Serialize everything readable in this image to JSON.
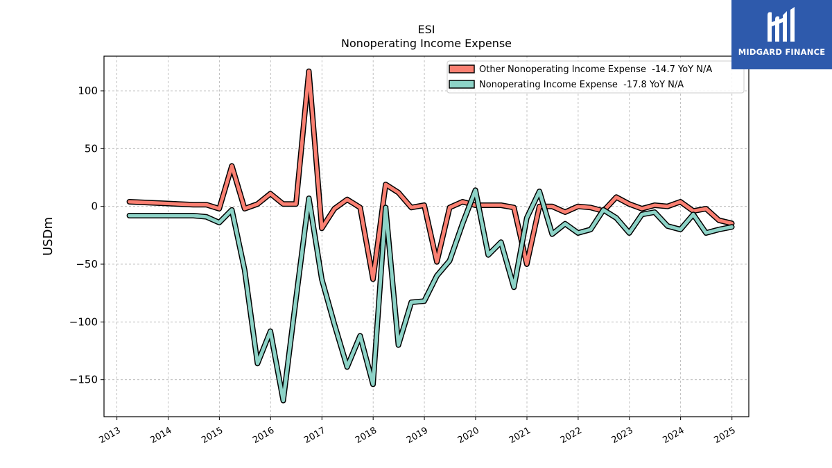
{
  "brand": {
    "name": "MIDGARD FINANCE",
    "logo_icon": "midgard-m-logo-icon",
    "background_color": "#2e5aac"
  },
  "chart_data": {
    "type": "line",
    "title": "ESI",
    "subtitle": "Nonoperating Income Expense",
    "xlabel": "",
    "ylabel": "USDm",
    "x_ticks": [
      "2013",
      "2014",
      "2015",
      "2016",
      "2017",
      "2018",
      "2019",
      "2020",
      "2021",
      "2022",
      "2023",
      "2024",
      "2025"
    ],
    "y_ticks": [
      100,
      50,
      0,
      -50,
      -100,
      -150
    ],
    "y_tick_labels": [
      "100",
      "50",
      "0",
      "−50",
      "−100",
      "−150"
    ],
    "xlim": [
      "2012-10-01",
      "2025-05-01"
    ],
    "ylim": [
      -182,
      130
    ],
    "grid": true,
    "legend_position": "top-right",
    "series": [
      {
        "name": "Other Nonoperating Income Expense  -14.7 YoY N/A",
        "color": "#fa8072",
        "x": [
          "2013-03-31",
          "2014-06-30",
          "2014-09-30",
          "2014-12-31",
          "2015-03-31",
          "2015-06-30",
          "2015-09-30",
          "2015-12-31",
          "2016-03-31",
          "2016-06-30",
          "2016-09-30",
          "2016-12-31",
          "2017-03-31",
          "2017-06-30",
          "2017-09-30",
          "2017-12-31",
          "2018-03-31",
          "2018-06-30",
          "2018-09-30",
          "2018-12-31",
          "2019-03-31",
          "2019-06-30",
          "2019-09-30",
          "2019-12-31",
          "2020-03-31",
          "2020-06-30",
          "2020-09-30",
          "2020-12-31",
          "2021-03-31",
          "2021-06-30",
          "2021-09-30",
          "2021-12-31",
          "2022-03-31",
          "2022-06-30",
          "2022-09-30",
          "2022-12-31",
          "2023-03-31",
          "2023-06-30",
          "2023-09-30",
          "2023-12-31",
          "2024-03-31",
          "2024-06-30",
          "2024-09-30",
          "2024-12-31"
        ],
        "values": [
          4,
          1.5,
          1.5,
          -2,
          35,
          -2,
          2,
          11,
          2,
          2,
          117,
          -19,
          -2,
          6,
          -1,
          -63,
          19,
          12,
          -1,
          1,
          -48,
          -1,
          4,
          1,
          1,
          1,
          -1,
          -50,
          0,
          0,
          -5,
          0,
          -1,
          -4,
          8,
          2,
          -2,
          1,
          0,
          4,
          -4,
          -2,
          -12,
          -14.7
        ]
      },
      {
        "name": "Nonoperating Income Expense  -17.8 YoY N/A",
        "color": "#8dd3c7",
        "x": [
          "2013-03-31",
          "2014-06-30",
          "2014-09-30",
          "2014-12-31",
          "2015-03-31",
          "2015-06-30",
          "2015-09-30",
          "2015-12-31",
          "2016-03-31",
          "2016-06-30",
          "2016-09-30",
          "2016-12-31",
          "2017-03-31",
          "2017-06-30",
          "2017-09-30",
          "2017-12-31",
          "2018-03-31",
          "2018-06-30",
          "2018-09-30",
          "2018-12-31",
          "2019-03-31",
          "2019-06-30",
          "2019-09-30",
          "2019-12-31",
          "2020-03-31",
          "2020-06-30",
          "2020-09-30",
          "2020-12-31",
          "2021-03-31",
          "2021-06-30",
          "2021-09-30",
          "2021-12-31",
          "2022-03-31",
          "2022-06-30",
          "2022-09-30",
          "2022-12-31",
          "2023-03-31",
          "2023-06-30",
          "2023-09-30",
          "2023-12-31",
          "2024-03-31",
          "2024-06-30",
          "2024-09-30",
          "2024-12-31"
        ],
        "values": [
          -8,
          -8,
          -9,
          -14,
          -3,
          -55,
          -136,
          -108,
          -168,
          -80,
          7,
          -63,
          -102,
          -139,
          -112,
          -154,
          -1,
          -120,
          -83,
          -82,
          -60,
          -47,
          -15,
          14,
          -42,
          -31,
          -70,
          -10,
          13,
          -24,
          -15,
          -23,
          -20,
          -3,
          -10,
          -23,
          -7,
          -5,
          -17,
          -20,
          -7,
          -23,
          -20,
          -17.8
        ]
      }
    ]
  }
}
